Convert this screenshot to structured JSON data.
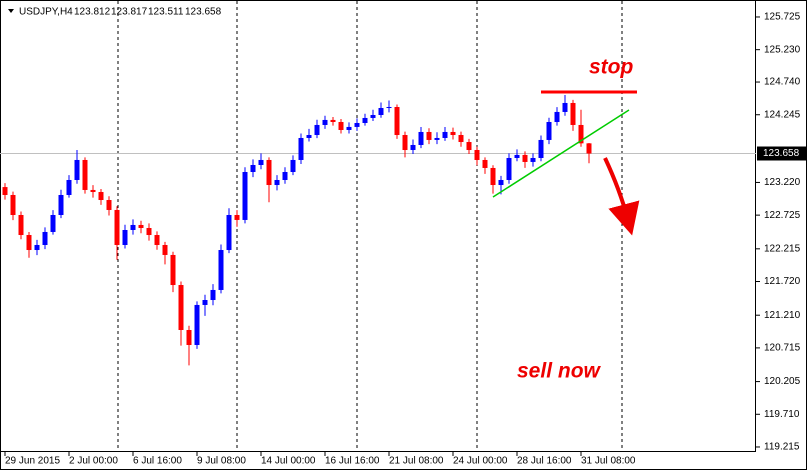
{
  "chart_data": {
    "type": "candlestick",
    "header": {
      "symbol": "USDJPY,H4",
      "values": [
        123.812,
        123.817,
        123.511,
        123.658
      ]
    },
    "up_color": "#0000ff",
    "down_color": "#ff0000",
    "open": [
      123.15,
      123.03,
      122.727,
      122.424,
      122.197,
      122.273,
      122.47,
      122.727,
      123.03,
      123.257,
      123.56,
      123.106,
      123.075,
      122.954,
      122.803,
      122.273,
      122.5,
      122.576,
      122.53,
      122.424,
      122.273,
      122.122,
      121.667,
      120.986,
      120.759,
      121.365,
      121.44,
      121.592,
      122.197,
      122.727,
      122.652,
      123.378,
      123.484,
      123.56,
      123.181,
      123.257,
      123.378,
      123.56,
      123.893,
      123.938,
      124.09,
      124.166,
      124.135,
      124.014,
      124.06,
      124.12,
      124.196,
      124.241,
      124.347,
      124.362,
      123.938,
      123.711,
      123.787,
      123.984,
      123.863,
      123.893,
      123.984,
      123.938,
      123.832,
      123.711,
      123.56,
      123.439,
      123.181,
      123.257,
      123.59,
      123.636,
      123.53,
      123.59,
      123.863,
      124.135,
      124.287,
      124.423,
      124.09,
      123.812
    ],
    "high": [
      123.21,
      123.08,
      122.78,
      122.47,
      122.35,
      122.54,
      122.8,
      123.11,
      123.33,
      123.711,
      123.6,
      123.18,
      123.12,
      123.01,
      122.86,
      122.58,
      122.66,
      122.64,
      122.6,
      122.48,
      122.32,
      122.17,
      121.72,
      121.05,
      121.42,
      121.52,
      121.68,
      122.28,
      122.83,
      122.8,
      123.45,
      123.57,
      123.66,
      123.6,
      123.33,
      123.45,
      123.63,
      123.96,
      124.03,
      124.17,
      124.23,
      124.21,
      124.18,
      124.13,
      124.19,
      124.26,
      124.32,
      124.43,
      124.46,
      124.4,
      123.99,
      123.87,
      124.06,
      124.04,
      123.98,
      124.06,
      124.05,
      123.99,
      123.88,
      123.76,
      123.6,
      123.48,
      123.32,
      123.66,
      123.72,
      123.69,
      123.66,
      123.93,
      124.2,
      124.36,
      124.544,
      124.47,
      124.32,
      123.817
    ],
    "low": [
      122.96,
      122.65,
      122.36,
      122.08,
      122.12,
      122.21,
      122.43,
      122.68,
      122.99,
      123.2,
      123.05,
      122.99,
      122.88,
      122.72,
      122.05,
      122.22,
      122.43,
      122.45,
      122.34,
      122.2,
      121.98,
      121.56,
      120.75,
      120.45,
      120.7,
      121.2,
      121.36,
      121.54,
      122.15,
      122.55,
      122.6,
      123.3,
      123.42,
      122.92,
      123.1,
      123.2,
      123.33,
      123.5,
      123.84,
      123.89,
      124.03,
      124.08,
      123.96,
      123.96,
      124.0,
      124.08,
      124.15,
      124.2,
      124.28,
      123.88,
      123.6,
      123.65,
      123.74,
      123.8,
      123.8,
      123.85,
      123.87,
      123.76,
      123.65,
      123.48,
      123.35,
      123.05,
      123.04,
      123.2,
      123.54,
      123.44,
      123.46,
      123.54,
      123.8,
      124.08,
      124.23,
      124.0,
      123.76,
      123.511
    ],
    "close": [
      123.03,
      122.727,
      122.424,
      122.197,
      122.273,
      122.47,
      122.727,
      123.03,
      123.257,
      123.56,
      123.106,
      123.075,
      122.954,
      122.803,
      122.273,
      122.5,
      122.576,
      122.53,
      122.424,
      122.273,
      122.122,
      121.667,
      120.986,
      120.759,
      121.365,
      121.44,
      121.592,
      122.197,
      122.727,
      122.652,
      123.378,
      123.484,
      123.56,
      123.181,
      123.257,
      123.378,
      123.56,
      123.893,
      123.938,
      124.09,
      124.166,
      124.135,
      124.014,
      124.06,
      124.12,
      124.196,
      124.241,
      124.347,
      124.362,
      123.938,
      123.711,
      123.787,
      123.984,
      123.863,
      123.893,
      123.984,
      123.938,
      123.832,
      123.711,
      123.56,
      123.439,
      123.181,
      123.257,
      123.59,
      123.636,
      123.53,
      123.59,
      123.863,
      124.135,
      124.287,
      124.423,
      124.09,
      123.812,
      123.658
    ],
    "xlim": [
      -0.625,
      93.875
    ],
    "xticks": [
      {
        "value": 0,
        "label": "29 Jun 2015"
      },
      {
        "value": 8,
        "label": "2 Jul 00:00"
      },
      {
        "value": 16,
        "label": "6 Jul 16:00"
      },
      {
        "value": 24,
        "label": "9 Jul 08:00"
      },
      {
        "value": 32,
        "label": "14 Jul 00:00"
      },
      {
        "value": 40,
        "label": "16 Jul 16:00"
      },
      {
        "value": 48,
        "label": "21 Jul 08:00"
      },
      {
        "value": 56,
        "label": "24 Jul 00:00"
      },
      {
        "value": 64,
        "label": "28 Jul 16:00"
      },
      {
        "value": 72,
        "label": "31 Jul 08:00"
      }
    ],
    "ylim": [
      119.139,
      125.982
    ],
    "yticks": [
      125.725,
      {
        "value": 125.23,
        "label": "125.230"
      },
      {
        "value": 124.74,
        "label": "124.740"
      },
      124.245,
      {
        "value": 123.22,
        "label": "123.220"
      },
      122.725,
      122.215,
      {
        "value": 121.72,
        "label": "121.720"
      },
      {
        "value": 121.21,
        "label": "121.210"
      },
      120.715,
      120.205,
      {
        "value": 119.71,
        "label": "119.710"
      },
      119.215
    ],
    "current_price": 123.658,
    "stop_line": {
      "x": [
        67,
        79
      ],
      "y": 124.59,
      "color": "#ff0000"
    },
    "trend_line": {
      "x": [
        61,
        78
      ],
      "y": [
        122.999,
        124.317
      ],
      "color": "#00cc00"
    },
    "annotations": [
      {
        "text": "stop"
      },
      {
        "text": "sell now"
      }
    ]
  }
}
